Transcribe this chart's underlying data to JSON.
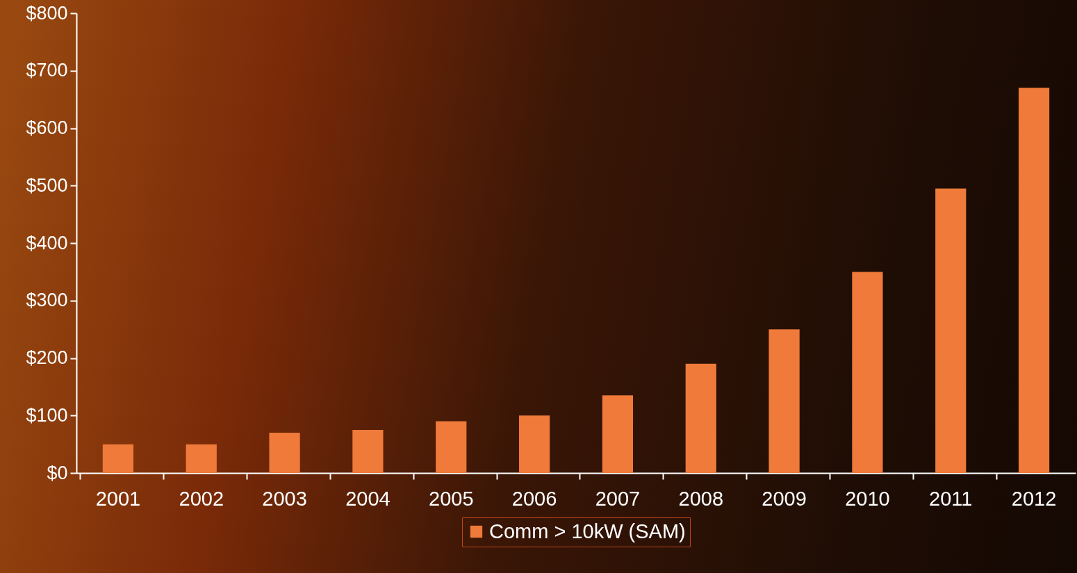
{
  "chart_data": {
    "type": "bar",
    "categories": [
      "2001",
      "2002",
      "2003",
      "2004",
      "2005",
      "2006",
      "2007",
      "2008",
      "2009",
      "2010",
      "2011",
      "2012"
    ],
    "series": [
      {
        "name": "Comm > 10kW (SAM)",
        "color": "#f07a3a",
        "values": [
          50,
          50,
          70,
          75,
          90,
          100,
          135,
          190,
          250,
          350,
          495,
          670
        ]
      }
    ],
    "ylim": [
      0,
      800
    ],
    "yticks": [
      {
        "value": 0,
        "label": "$0"
      },
      {
        "value": 100,
        "label": "$100"
      },
      {
        "value": 200,
        "label": "$200"
      },
      {
        "value": 300,
        "label": "$300"
      },
      {
        "value": 400,
        "label": "$400"
      },
      {
        "value": 500,
        "label": "$500"
      },
      {
        "value": 600,
        "label": "$600"
      },
      {
        "value": 700,
        "label": "$700"
      },
      {
        "value": 800,
        "label": "$800"
      }
    ],
    "grid": false,
    "legend": "bottom"
  }
}
